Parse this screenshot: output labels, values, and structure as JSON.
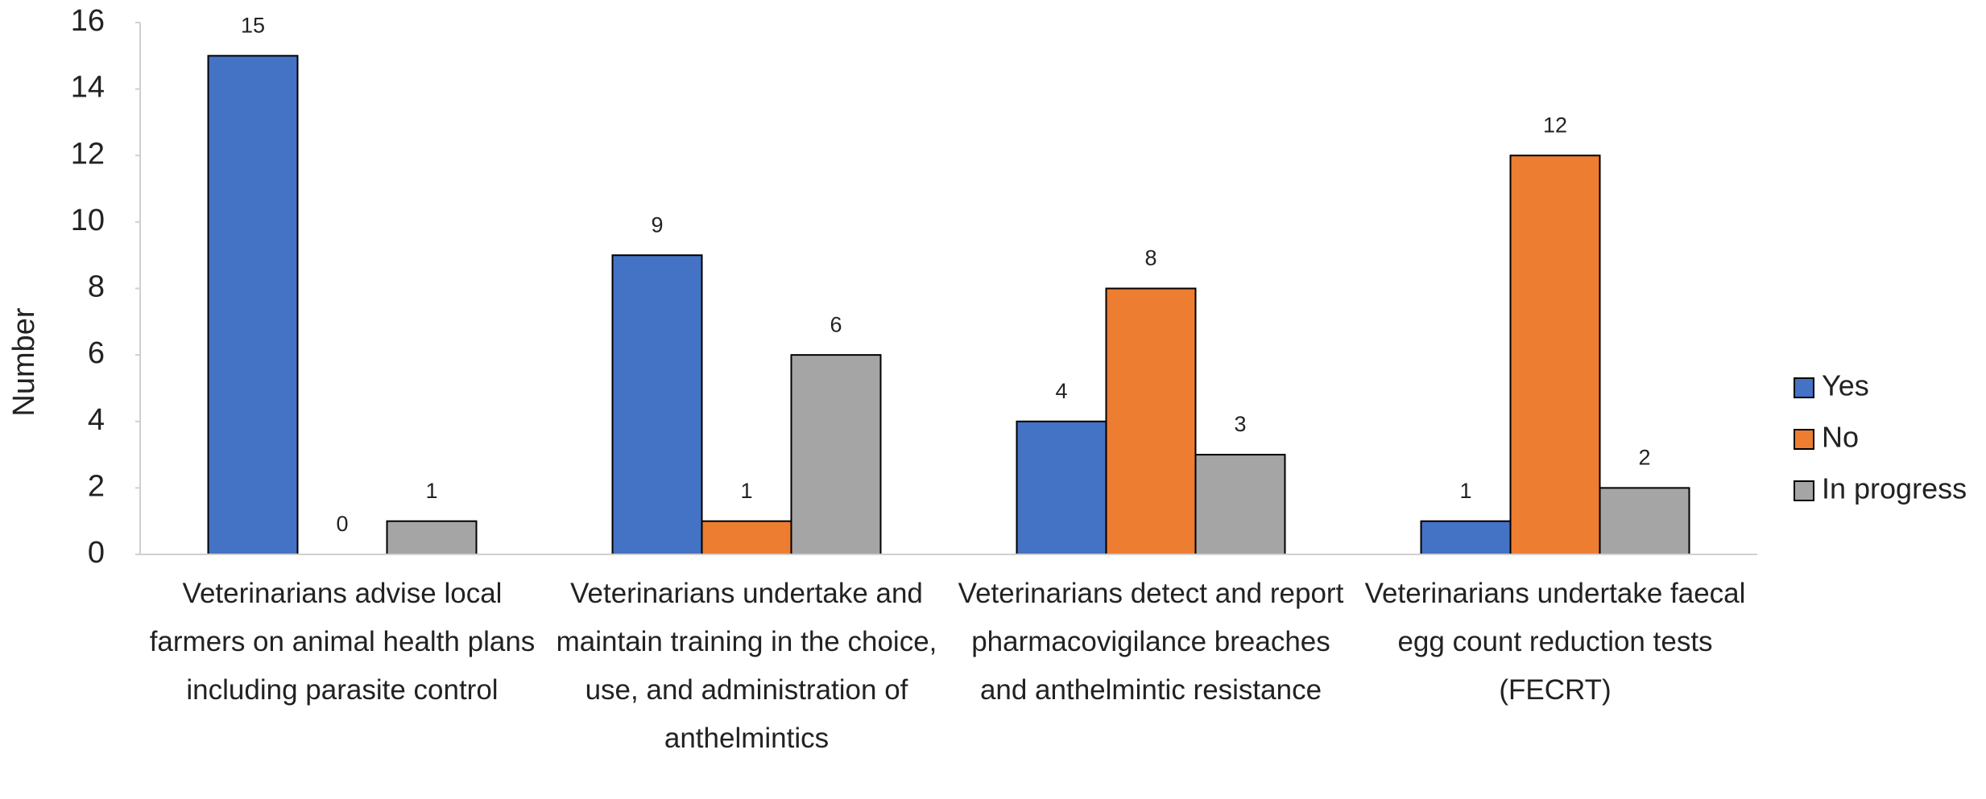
{
  "chart_data": {
    "type": "bar",
    "y_label": "Number",
    "categories": [
      "Veterinarians advise local farmers on animal health plans including parasite control",
      "Veterinarians undertake and maintain training in the choice, use, and administration of anthelmintics",
      "Veterinarians detect and report pharmacovigilance breaches and anthelmintic resistance",
      "Veterinarians undertake faecal egg count reduction tests (FECRT)"
    ],
    "series": [
      {
        "name": "Yes",
        "color": "#4472c4",
        "values": [
          15,
          9,
          4,
          1
        ]
      },
      {
        "name": "No",
        "color": "#ed7d31",
        "values": [
          0,
          1,
          8,
          12
        ]
      },
      {
        "name": "In progress",
        "color": "#a5a5a5",
        "values": [
          1,
          6,
          3,
          2
        ]
      }
    ],
    "ylim": [
      0,
      16
    ],
    "yticks": [
      0,
      2,
      4,
      6,
      8,
      10,
      12,
      14,
      16
    ],
    "legend": "right"
  }
}
